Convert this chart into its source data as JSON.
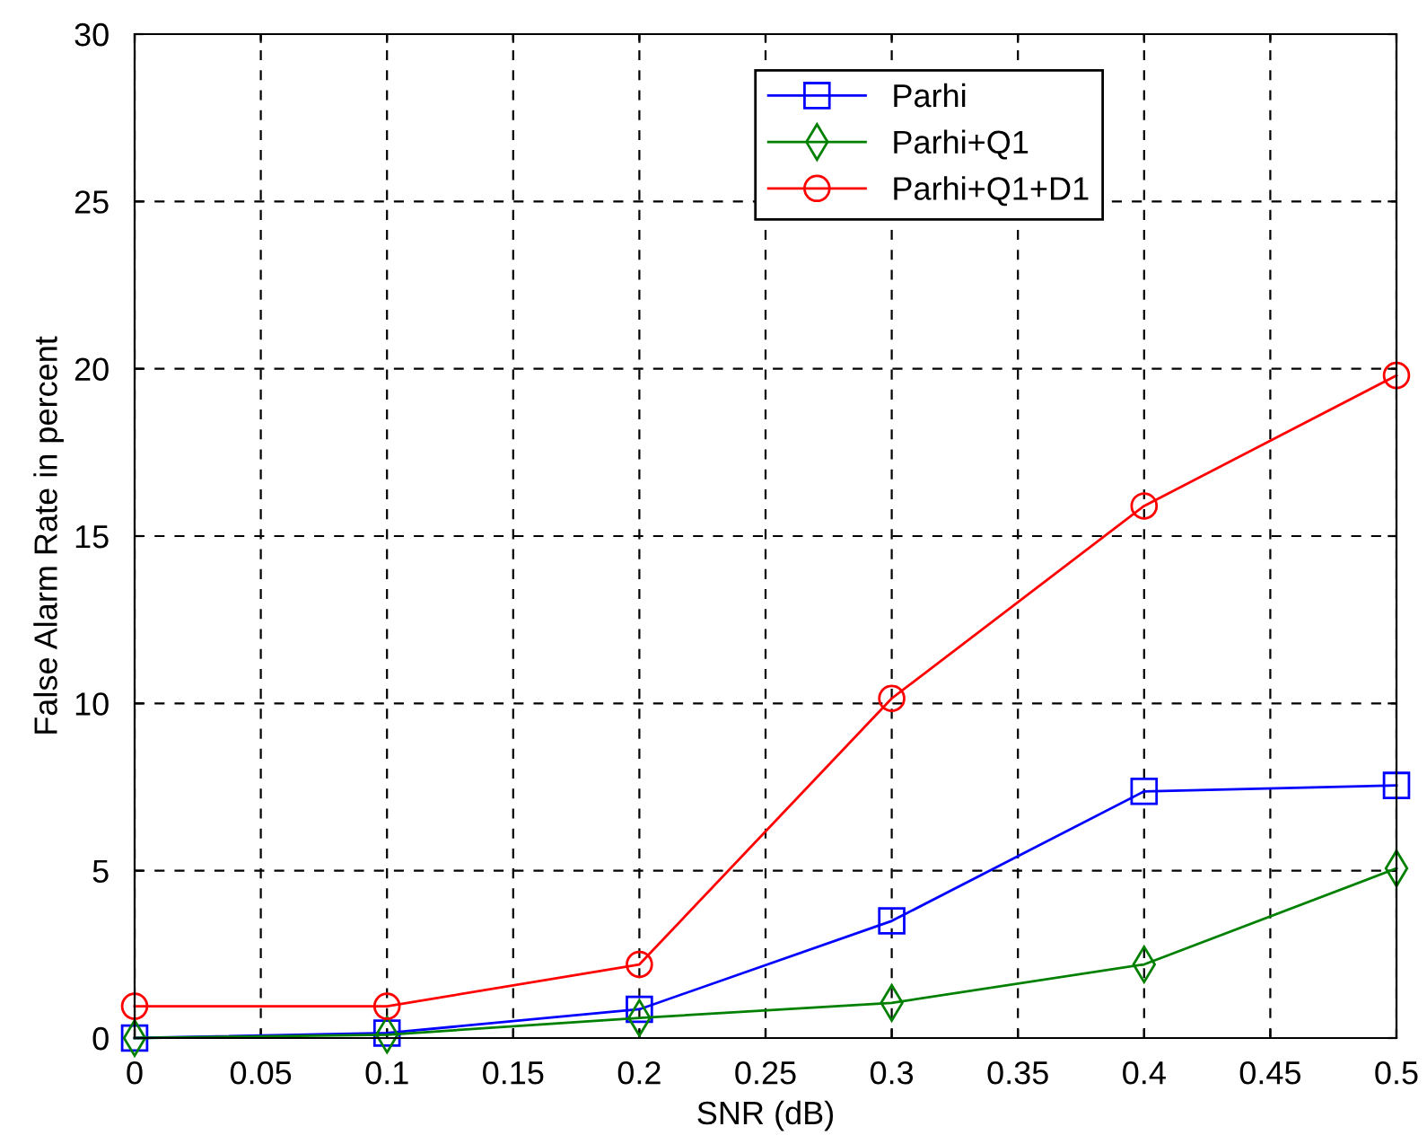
{
  "chart_data": {
    "type": "line",
    "xlabel": "SNR (dB)",
    "ylabel": "False Alarm Rate in percent",
    "x": [
      0,
      0.1,
      0.2,
      0.3,
      0.4,
      0.5
    ],
    "series": [
      {
        "name": "Parhi",
        "color": "#0000ff",
        "marker": "square",
        "values": [
          0,
          0.15,
          0.86,
          3.5,
          7.37,
          7.55
        ]
      },
      {
        "name": "Parhi+Q1",
        "color": "#008000",
        "marker": "diamond",
        "values": [
          0,
          0.1,
          0.6,
          1.05,
          2.2,
          5.07
        ]
      },
      {
        "name": "Parhi+Q1+D1",
        "color": "#ff0000",
        "marker": "circle",
        "values": [
          0.95,
          0.95,
          2.2,
          10.15,
          15.9,
          19.8
        ]
      }
    ],
    "xlim": [
      0,
      0.5
    ],
    "xticks": [
      0,
      0.05,
      0.1,
      0.15,
      0.2,
      0.25,
      0.3,
      0.35,
      0.4,
      0.45,
      0.5
    ],
    "ylim": [
      0,
      30
    ],
    "yticks": [
      0,
      5,
      10,
      15,
      20,
      25,
      30
    ],
    "grid": true,
    "legend": "top right",
    "line_style": "solid"
  }
}
